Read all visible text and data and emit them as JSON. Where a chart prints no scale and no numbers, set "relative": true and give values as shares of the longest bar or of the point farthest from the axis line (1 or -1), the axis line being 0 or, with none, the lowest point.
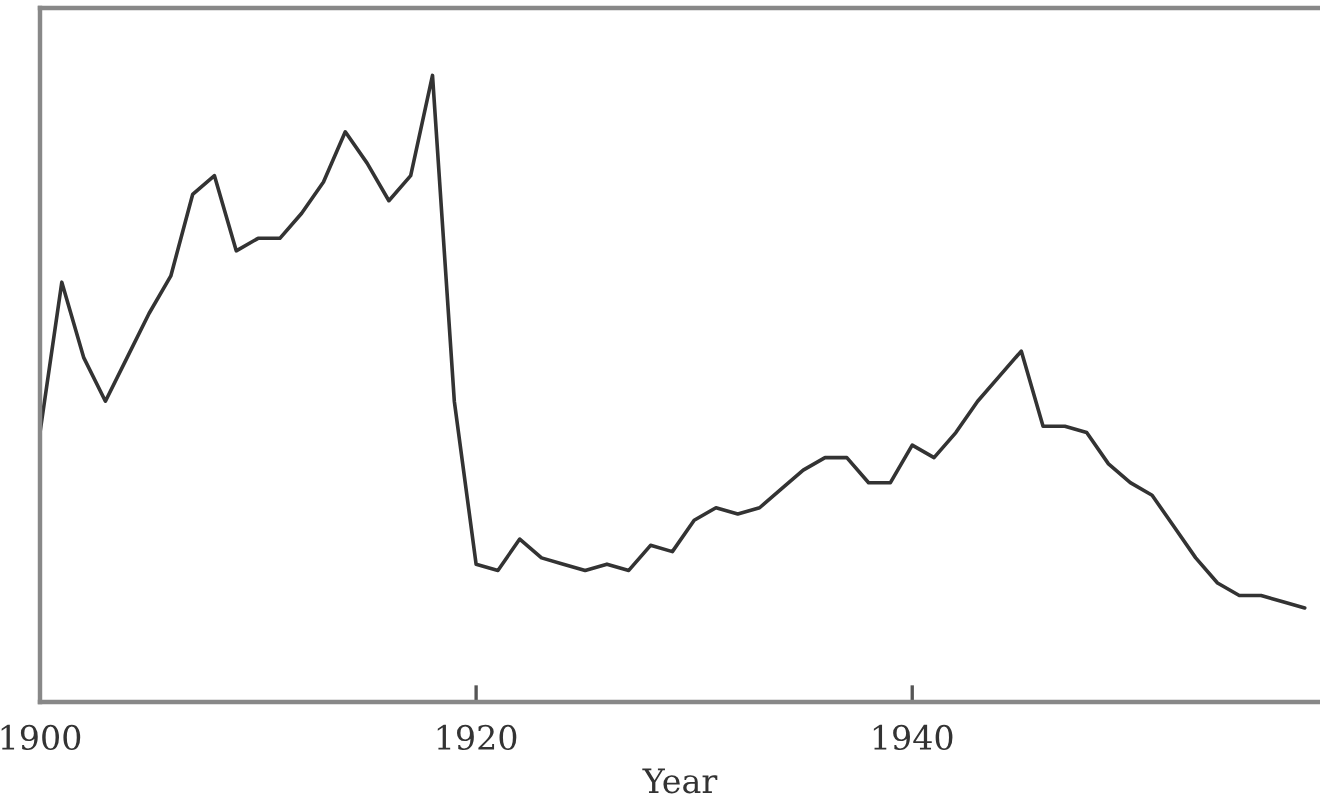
{
  "chart_data": {
    "type": "line",
    "xlabel": "Year",
    "relative": true,
    "xlim": [
      1900,
      1958.7
    ],
    "xticks": [
      1900,
      1920,
      1940
    ],
    "x": [
      1900,
      1901,
      1902,
      1903,
      1904,
      1905,
      1906,
      1907,
      1908,
      1909,
      1910,
      1911,
      1912,
      1913,
      1914,
      1915,
      1916,
      1917,
      1918,
      1919,
      1920,
      1921,
      1922,
      1923,
      1924,
      1925,
      1926,
      1927,
      1928,
      1929,
      1930,
      1931,
      1932,
      1933,
      1934,
      1935,
      1936,
      1937,
      1938,
      1939,
      1940,
      1941,
      1942,
      1943,
      1944,
      1945,
      1946,
      1947,
      1948,
      1949,
      1950,
      1951,
      1952,
      1953,
      1954,
      1955,
      1956,
      1957,
      1958
    ],
    "series": [
      {
        "color": "#333333",
        "values": [
          0.43,
          0.67,
          0.55,
          0.48,
          0.55,
          0.62,
          0.68,
          0.81,
          0.84,
          0.72,
          0.74,
          0.74,
          0.78,
          0.83,
          0.91,
          0.86,
          0.8,
          0.84,
          1.0,
          0.48,
          0.22,
          0.21,
          0.26,
          0.23,
          0.22,
          0.21,
          0.22,
          0.21,
          0.25,
          0.24,
          0.29,
          0.31,
          0.3,
          0.31,
          0.34,
          0.37,
          0.39,
          0.39,
          0.35,
          0.35,
          0.41,
          0.39,
          0.43,
          0.48,
          0.52,
          0.56,
          0.44,
          0.44,
          0.43,
          0.38,
          0.35,
          0.33,
          0.28,
          0.23,
          0.19,
          0.17,
          0.17,
          0.16,
          0.15
        ]
      }
    ]
  }
}
